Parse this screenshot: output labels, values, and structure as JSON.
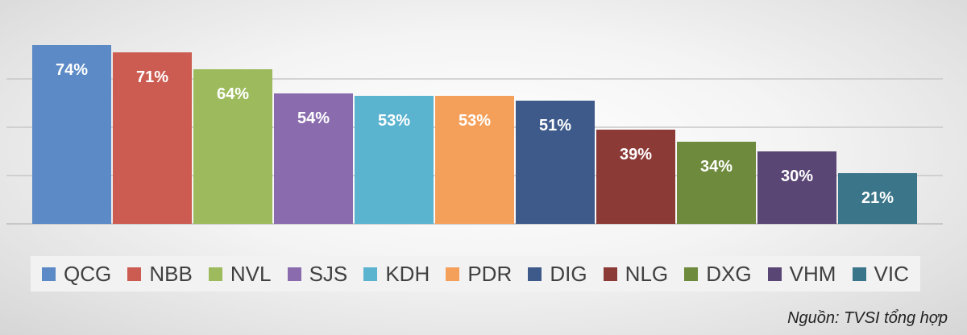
{
  "chart_data": {
    "type": "bar",
    "categories": [
      "QCG",
      "NBB",
      "NVL",
      "SJS",
      "KDH",
      "PDR",
      "DIG",
      "NLG",
      "DXG",
      "VHM",
      "VIC"
    ],
    "values": [
      74,
      71,
      64,
      54,
      53,
      53,
      51,
      39,
      34,
      30,
      21
    ],
    "data_labels": [
      "74%",
      "71%",
      "64%",
      "54%",
      "53%",
      "53%",
      "51%",
      "39%",
      "34%",
      "30%",
      "21%"
    ],
    "colors": [
      "#5b8ac6",
      "#cc5c52",
      "#9dbb5d",
      "#8a6cae",
      "#5ab3cf",
      "#f5a05a",
      "#3e5a8a",
      "#8b3a36",
      "#6e8a3c",
      "#5a4674",
      "#3b7589"
    ],
    "ylim": [
      0,
      80
    ],
    "grid": true,
    "legend_position": "bottom",
    "source": "Nguồn: TVSI tổng hợp"
  }
}
